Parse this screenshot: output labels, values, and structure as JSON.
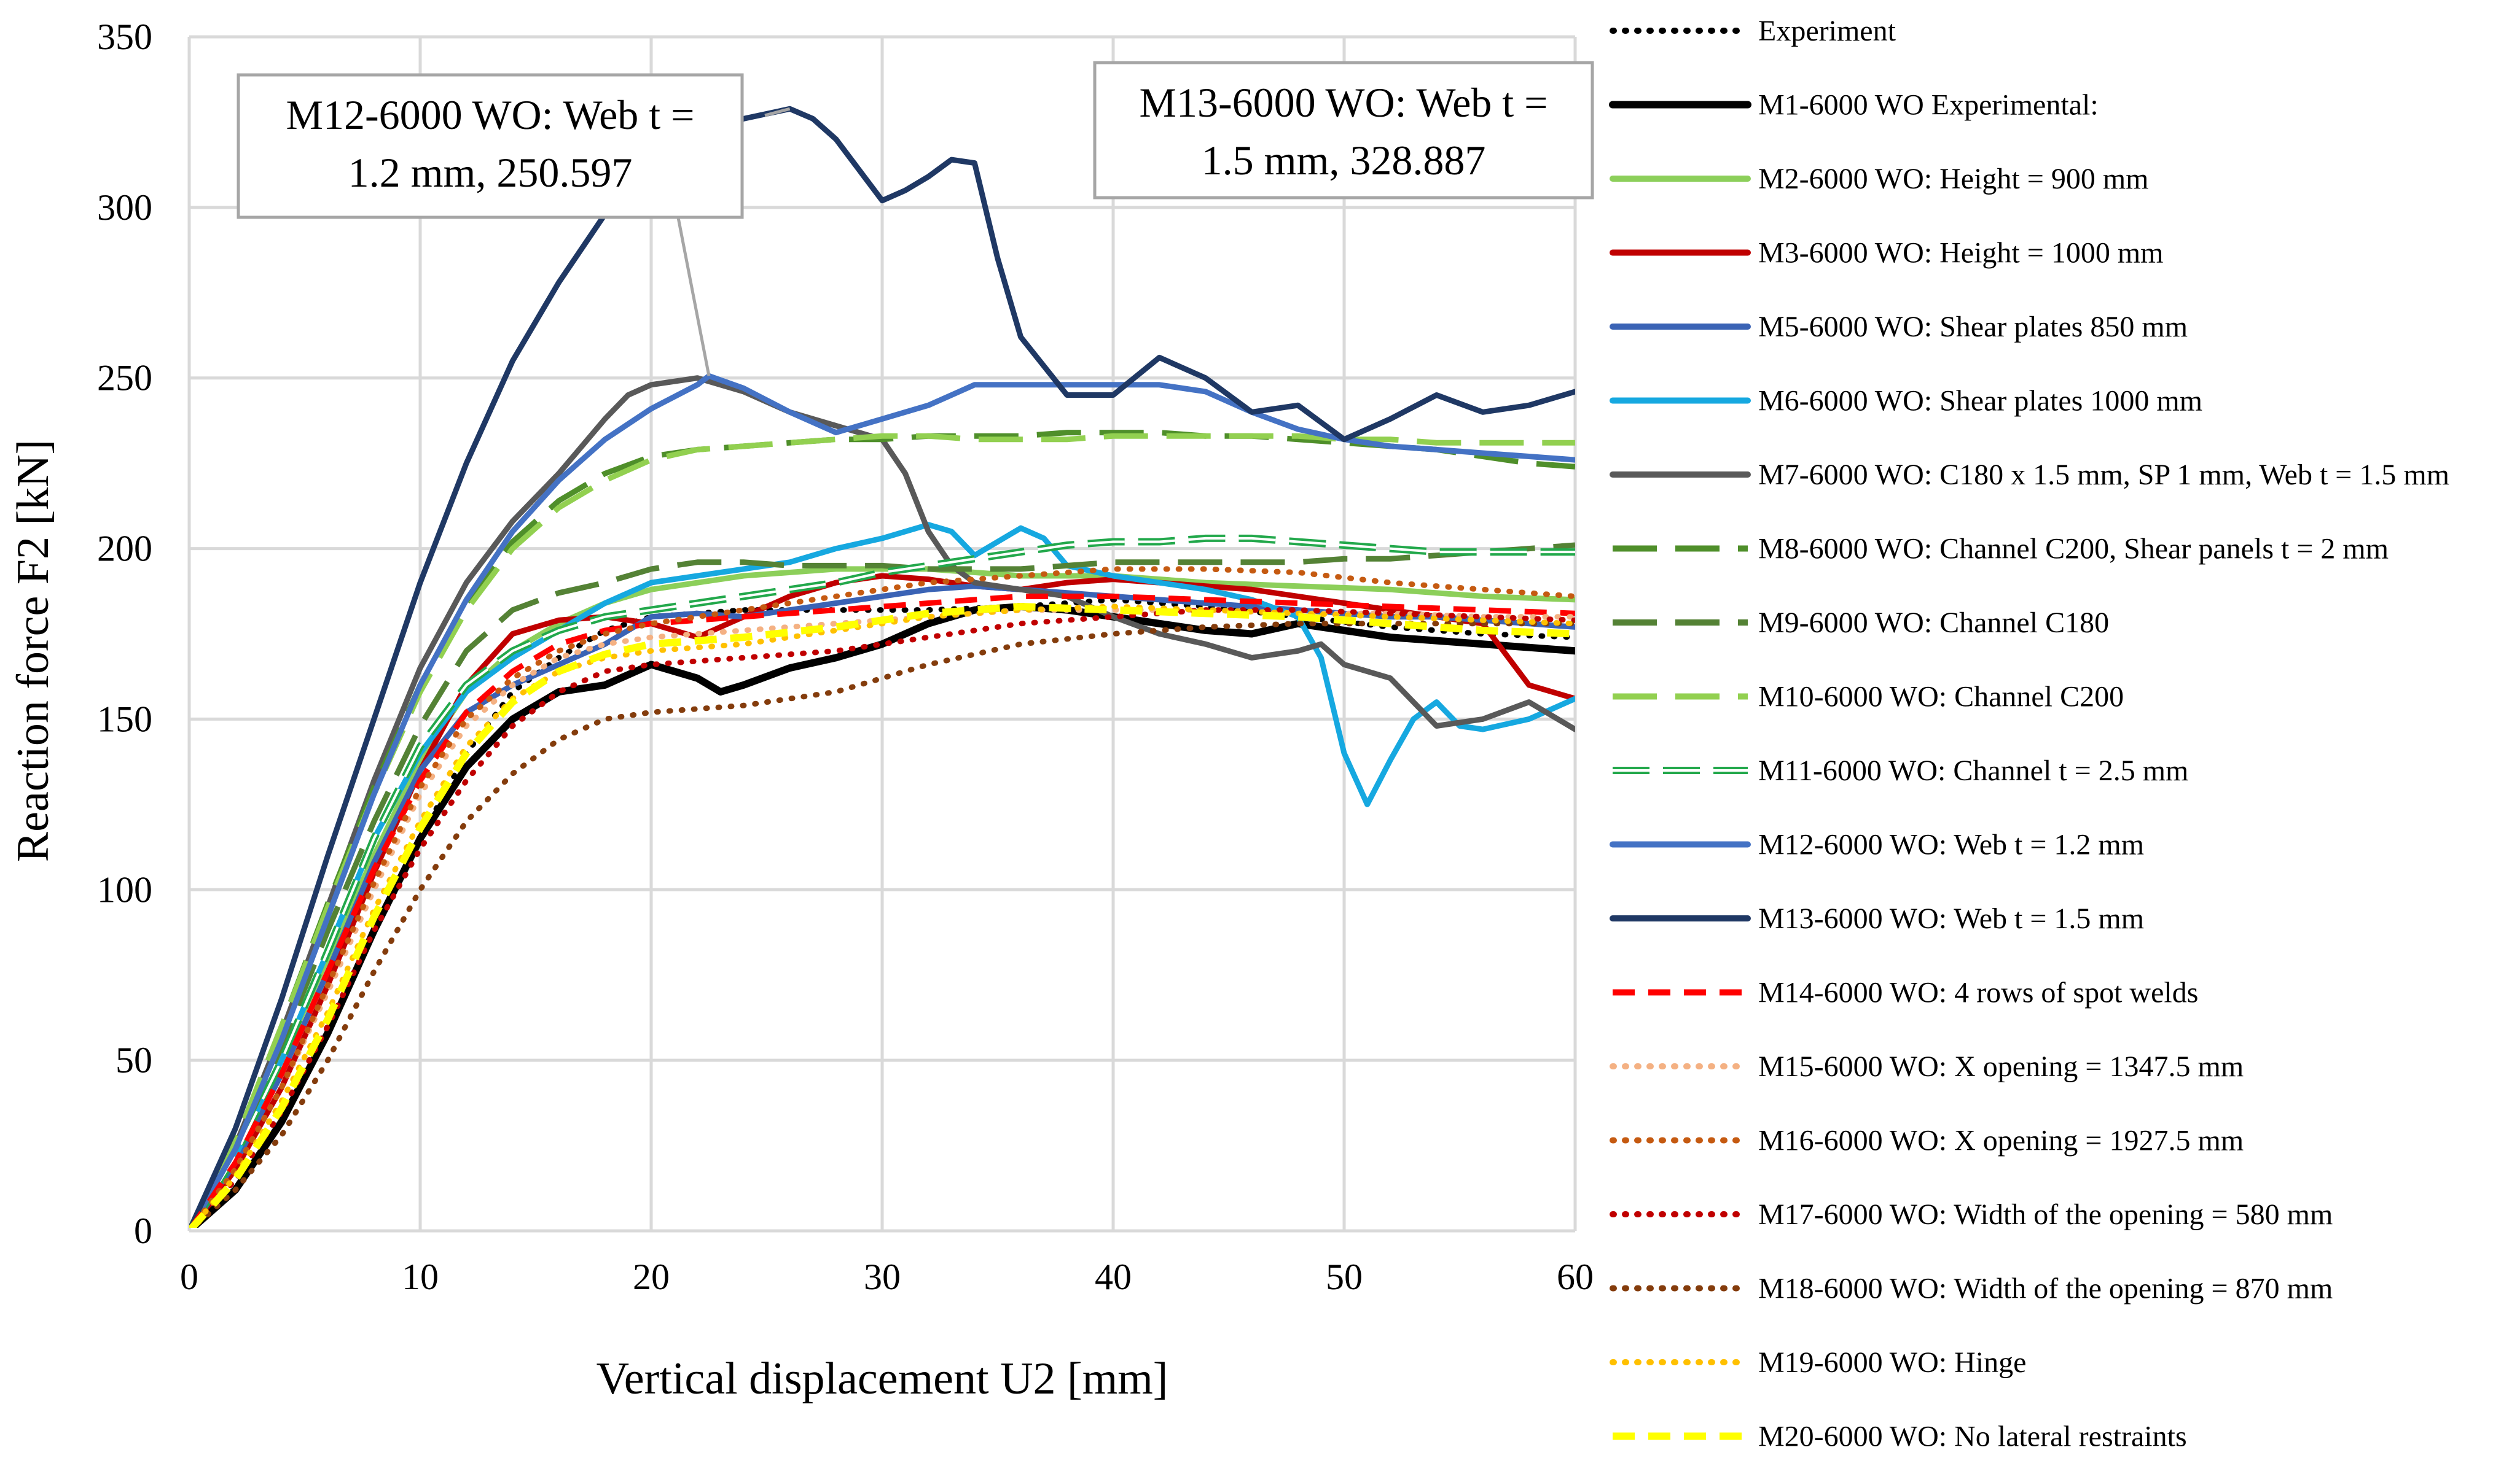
{
  "chart_data": {
    "type": "line",
    "xlabel": "Vertical displacement U2 [mm]",
    "ylabel": "Reaction force F2 [kN]",
    "xlim": [
      0,
      60
    ],
    "ylim": [
      0,
      350
    ],
    "xticks": [
      "0",
      "10",
      "20",
      "30",
      "40",
      "50",
      "60"
    ],
    "yticks": [
      "0",
      "50",
      "100",
      "150",
      "200",
      "250",
      "300",
      "350"
    ],
    "grid": true,
    "legend_position": "right",
    "annotations": [
      {
        "line1": "M12-6000 WO: Web t =",
        "line2": "1.2 mm, 250.597",
        "point": [
          22.5,
          250.6
        ]
      },
      {
        "line1": "M13-6000 WO: Web t =",
        "line2": "1.5 mm, 328.887",
        "point": [
          26,
          328.9
        ]
      }
    ],
    "series": [
      {
        "name": "Experiment",
        "color": "#000000",
        "style": "dotted",
        "x": [
          0,
          2,
          4,
          6,
          8,
          10,
          12,
          14,
          16,
          18,
          20,
          24,
          28,
          32,
          36,
          40,
          44,
          48,
          52,
          56,
          60
        ],
        "y": [
          0,
          15,
          35,
          60,
          88,
          115,
          140,
          158,
          168,
          176,
          180,
          182,
          182,
          182,
          183,
          185,
          183,
          180,
          177,
          175,
          174
        ]
      },
      {
        "name": "M1-6000 WO Experimental:",
        "color": "#000000",
        "style": "solid",
        "width": 12,
        "x": [
          0,
          2,
          4,
          6,
          8,
          10,
          12,
          14,
          16,
          18,
          20,
          22,
          23,
          24,
          26,
          28,
          30,
          32,
          34,
          36,
          38,
          40,
          42,
          44,
          46,
          48,
          50,
          52,
          54,
          56,
          58,
          60
        ],
        "y": [
          0,
          12,
          32,
          58,
          88,
          115,
          136,
          150,
          158,
          160,
          166,
          162,
          158,
          160,
          165,
          168,
          172,
          178,
          182,
          183,
          182,
          180,
          178,
          176,
          175,
          178,
          176,
          174,
          173,
          172,
          171,
          170
        ]
      },
      {
        "name": "M2-6000 WO: Height = 900 mm",
        "color": "#8ccf5a",
        "style": "solid",
        "x": [
          0,
          2,
          4,
          6,
          8,
          10,
          12,
          14,
          16,
          18,
          20,
          24,
          28,
          32,
          36,
          40,
          44,
          48,
          52,
          56,
          60
        ],
        "y": [
          0,
          22,
          50,
          80,
          110,
          138,
          158,
          170,
          178,
          184,
          188,
          192,
          194,
          194,
          192,
          192,
          190,
          189,
          188,
          186,
          185
        ]
      },
      {
        "name": "M3-6000 WO: Height = 1000 mm",
        "color": "#c00000",
        "style": "solid",
        "x": [
          0,
          2,
          4,
          6,
          8,
          10,
          12,
          14,
          16,
          18,
          20,
          22,
          24,
          26,
          28,
          30,
          32,
          34,
          36,
          38,
          40,
          42,
          44,
          46,
          48,
          50,
          52,
          54,
          56,
          58,
          60
        ],
        "y": [
          0,
          18,
          42,
          72,
          105,
          135,
          160,
          175,
          179,
          180,
          178,
          174,
          180,
          186,
          190,
          192,
          191,
          189,
          188,
          190,
          191,
          190,
          189,
          188,
          186,
          184,
          182,
          180,
          178,
          160,
          156
        ]
      },
      {
        "name": "M5-6000 WO: Shear plates 850 mm",
        "color": "#3a63b5",
        "style": "solid",
        "x": [
          0,
          2,
          4,
          6,
          8,
          10,
          12,
          14,
          16,
          18,
          20,
          22,
          24,
          26,
          28,
          30,
          32,
          34,
          36,
          38,
          40,
          42,
          44,
          46,
          48,
          50,
          52,
          54,
          56,
          58,
          60
        ],
        "y": [
          0,
          20,
          46,
          76,
          108,
          135,
          152,
          160,
          166,
          172,
          180,
          181,
          180,
          182,
          184,
          186,
          188,
          189,
          188,
          187,
          186,
          185,
          184,
          183,
          182,
          181,
          180,
          180,
          179,
          178,
          177
        ]
      },
      {
        "name": "M6-6000 WO: Shear plates 1000 mm",
        "color": "#16a8e0",
        "style": "solid",
        "x": [
          0,
          2,
          4,
          6,
          8,
          10,
          12,
          14,
          16,
          18,
          20,
          22,
          24,
          26,
          28,
          30,
          32,
          33,
          34,
          36,
          37,
          38,
          40,
          42,
          44,
          46,
          48,
          49,
          50,
          51,
          52,
          53,
          54,
          55,
          56,
          58,
          60
        ],
        "y": [
          0,
          22,
          50,
          82,
          115,
          140,
          158,
          168,
          176,
          184,
          190,
          192,
          194,
          196,
          200,
          203,
          207,
          205,
          198,
          206,
          203,
          195,
          192,
          190,
          188,
          185,
          180,
          168,
          140,
          125,
          138,
          150,
          155,
          148,
          147,
          150,
          156
        ]
      },
      {
        "name": "M7-6000 WO: C180 x 1.5 mm, SP 1 mm, Web t = 1.5 mm",
        "color": "#595959",
        "style": "solid",
        "x": [
          0,
          2,
          4,
          6,
          8,
          10,
          12,
          14,
          16,
          18,
          19,
          20,
          22,
          24,
          26,
          28,
          30,
          31,
          32,
          33,
          34,
          36,
          38,
          40,
          42,
          44,
          46,
          48,
          49,
          50,
          52,
          54,
          56,
          58,
          60
        ],
        "y": [
          0,
          25,
          58,
          95,
          132,
          165,
          190,
          208,
          222,
          238,
          245,
          248,
          250,
          246,
          240,
          236,
          232,
          222,
          205,
          195,
          190,
          188,
          186,
          180,
          175,
          172,
          168,
          170,
          172,
          166,
          162,
          148,
          150,
          155,
          147
        ]
      },
      {
        "name": "M8-6000 WO: Channel C200, Shear panels t = 2 mm",
        "color": "#4f8f2a",
        "style": "longdash",
        "x": [
          0,
          2,
          4,
          6,
          8,
          10,
          12,
          14,
          16,
          18,
          20,
          22,
          24,
          26,
          28,
          30,
          32,
          34,
          36,
          38,
          40,
          42,
          44,
          46,
          48,
          50,
          52,
          54,
          56,
          58,
          60
        ],
        "y": [
          0,
          26,
          60,
          96,
          130,
          160,
          184,
          202,
          214,
          222,
          227,
          229,
          230,
          231,
          232,
          232,
          233,
          233,
          233,
          234,
          234,
          234,
          233,
          233,
          232,
          231,
          230,
          229,
          227,
          225,
          224
        ]
      },
      {
        "name": "M9-6000 WO: Channel C180",
        "color": "#548235",
        "style": "longdash",
        "x": [
          0,
          2,
          4,
          6,
          8,
          10,
          12,
          14,
          16,
          18,
          20,
          22,
          24,
          26,
          28,
          30,
          32,
          34,
          36,
          38,
          40,
          42,
          44,
          46,
          48,
          50,
          52,
          54,
          56,
          58,
          60
        ],
        "y": [
          0,
          24,
          54,
          88,
          120,
          148,
          170,
          182,
          187,
          190,
          194,
          196,
          196,
          195,
          195,
          195,
          194,
          194,
          194,
          195,
          196,
          196,
          196,
          196,
          196,
          197,
          197,
          198,
          199,
          200,
          201
        ]
      },
      {
        "name": "M10-6000 WO: Channel C200",
        "color": "#92d050",
        "style": "longdash",
        "x": [
          0,
          2,
          4,
          6,
          8,
          10,
          12,
          14,
          16,
          18,
          20,
          22,
          24,
          26,
          28,
          30,
          32,
          34,
          36,
          38,
          40,
          42,
          44,
          46,
          48,
          50,
          52,
          54,
          56,
          58,
          60
        ],
        "y": [
          0,
          26,
          60,
          95,
          128,
          158,
          182,
          200,
          212,
          220,
          226,
          229,
          230,
          231,
          232,
          233,
          233,
          232,
          232,
          232,
          233,
          233,
          233,
          233,
          233,
          232,
          232,
          231,
          231,
          231,
          231
        ]
      },
      {
        "name": "M11-6000 WO: Channel t = 2.5 mm",
        "color": "#22a84b",
        "style": "doubledash",
        "x": [
          0,
          2,
          4,
          6,
          8,
          10,
          12,
          14,
          16,
          18,
          20,
          22,
          24,
          26,
          28,
          30,
          32,
          34,
          36,
          38,
          40,
          42,
          44,
          46,
          48,
          50,
          52,
          54,
          56,
          58,
          60
        ],
        "y": [
          0,
          22,
          50,
          82,
          115,
          142,
          160,
          170,
          176,
          180,
          182,
          184,
          186,
          188,
          190,
          193,
          195,
          197,
          199,
          201,
          202,
          202,
          203,
          203,
          202,
          201,
          200,
          199,
          199,
          199,
          199
        ]
      },
      {
        "name": "M12-6000 WO: Web t = 1.2 mm",
        "color": "#4472c4",
        "style": "solid",
        "x": [
          0,
          2,
          4,
          6,
          8,
          10,
          12,
          14,
          16,
          18,
          20,
          22,
          22.5,
          24,
          26,
          28,
          30,
          32,
          34,
          36,
          38,
          40,
          42,
          44,
          46,
          48,
          50,
          52,
          54,
          56,
          58,
          60
        ],
        "y": [
          0,
          24,
          56,
          92,
          128,
          160,
          185,
          205,
          220,
          232,
          241,
          248,
          250.6,
          247,
          240,
          234,
          238,
          242,
          248,
          248,
          248,
          248,
          248,
          246,
          240,
          235,
          232,
          230,
          229,
          228,
          227,
          226
        ]
      },
      {
        "name": "M13-6000 WO: Web t = 1.5 mm",
        "color": "#1f3864",
        "style": "solid",
        "x": [
          0,
          2,
          4,
          6,
          8,
          10,
          12,
          14,
          16,
          18,
          20,
          22,
          24,
          26,
          27,
          28,
          30,
          31,
          32,
          33,
          34,
          35,
          36,
          38,
          40,
          42,
          44,
          46,
          48,
          50,
          52,
          54,
          56,
          58,
          60
        ],
        "y": [
          0,
          30,
          68,
          110,
          150,
          190,
          225,
          255,
          278,
          298,
          312,
          322,
          326,
          328.9,
          326,
          320,
          302,
          305,
          309,
          314,
          313,
          285,
          262,
          245,
          245,
          256,
          250,
          240,
          242,
          232,
          238,
          245,
          240,
          242,
          246
        ]
      },
      {
        "name": "M14-6000 WO: 4 rows of spot welds",
        "color": "#ff0000",
        "style": "dash",
        "x": [
          0,
          2,
          4,
          6,
          8,
          10,
          12,
          14,
          16,
          18,
          20,
          24,
          28,
          32,
          36,
          40,
          44,
          48,
          52,
          56,
          60
        ],
        "y": [
          0,
          20,
          46,
          76,
          106,
          132,
          152,
          164,
          172,
          176,
          178,
          180,
          182,
          184,
          186,
          186,
          185,
          184,
          183,
          182,
          181
        ]
      },
      {
        "name": "M15-6000 WO: X opening = 1347.5 mm",
        "color": "#f4b183",
        "style": "dotted",
        "x": [
          0,
          2,
          4,
          6,
          8,
          10,
          12,
          14,
          16,
          18,
          20,
          24,
          28,
          32,
          36,
          40,
          44,
          48,
          52,
          56,
          60
        ],
        "y": [
          0,
          18,
          42,
          70,
          100,
          128,
          148,
          160,
          168,
          172,
          174,
          176,
          178,
          180,
          182,
          182,
          182,
          181,
          181,
          180,
          180
        ]
      },
      {
        "name": "M16-6000 WO: X opening = 1927.5 mm",
        "color": "#c55a11",
        "style": "dotted",
        "x": [
          0,
          2,
          4,
          6,
          8,
          10,
          12,
          14,
          16,
          18,
          20,
          24,
          28,
          32,
          36,
          40,
          44,
          48,
          52,
          56,
          60
        ],
        "y": [
          0,
          18,
          42,
          72,
          102,
          130,
          150,
          162,
          170,
          175,
          178,
          182,
          186,
          190,
          192,
          194,
          194,
          193,
          190,
          188,
          186
        ]
      },
      {
        "name": "M17-6000 WO: Width of the opening = 580 mm",
        "color": "#c00000",
        "style": "dotted",
        "x": [
          0,
          2,
          4,
          6,
          8,
          10,
          12,
          14,
          16,
          18,
          20,
          24,
          28,
          32,
          36,
          40,
          44,
          48,
          52,
          56,
          60
        ],
        "y": [
          0,
          15,
          35,
          60,
          88,
          112,
          132,
          148,
          158,
          164,
          166,
          168,
          170,
          174,
          178,
          180,
          182,
          182,
          181,
          180,
          179
        ]
      },
      {
        "name": "M18-6000 WO: Width of the opening = 870 mm",
        "color": "#843c0c",
        "style": "dotted",
        "x": [
          0,
          2,
          4,
          6,
          8,
          10,
          12,
          14,
          16,
          18,
          20,
          24,
          28,
          32,
          36,
          40,
          44,
          48,
          52,
          56,
          60
        ],
        "y": [
          0,
          12,
          28,
          50,
          76,
          100,
          120,
          134,
          144,
          150,
          152,
          154,
          158,
          166,
          172,
          175,
          177,
          178,
          178,
          178,
          178
        ]
      },
      {
        "name": "M19-6000 WO: Hinge",
        "color": "#ffc000",
        "style": "dotted",
        "x": [
          0,
          2,
          4,
          6,
          8,
          10,
          12,
          14,
          16,
          18,
          20,
          24,
          28,
          32,
          36,
          40,
          44,
          48,
          52,
          56,
          60
        ],
        "y": [
          0,
          16,
          38,
          64,
          94,
          120,
          142,
          156,
          164,
          168,
          170,
          172,
          176,
          180,
          182,
          183,
          182,
          181,
          180,
          179,
          178
        ]
      },
      {
        "name": "M20-6000 WO: No lateral restraints",
        "color": "#ffff00",
        "style": "dash",
        "width": 12,
        "x": [
          0,
          2,
          4,
          6,
          8,
          10,
          12,
          14,
          16,
          18,
          20,
          24,
          28,
          32,
          36,
          40,
          44,
          48,
          52,
          56,
          60
        ],
        "y": [
          0,
          15,
          36,
          62,
          92,
          118,
          140,
          155,
          164,
          169,
          172,
          174,
          177,
          181,
          183,
          182,
          181,
          180,
          178,
          176,
          175
        ]
      }
    ]
  }
}
